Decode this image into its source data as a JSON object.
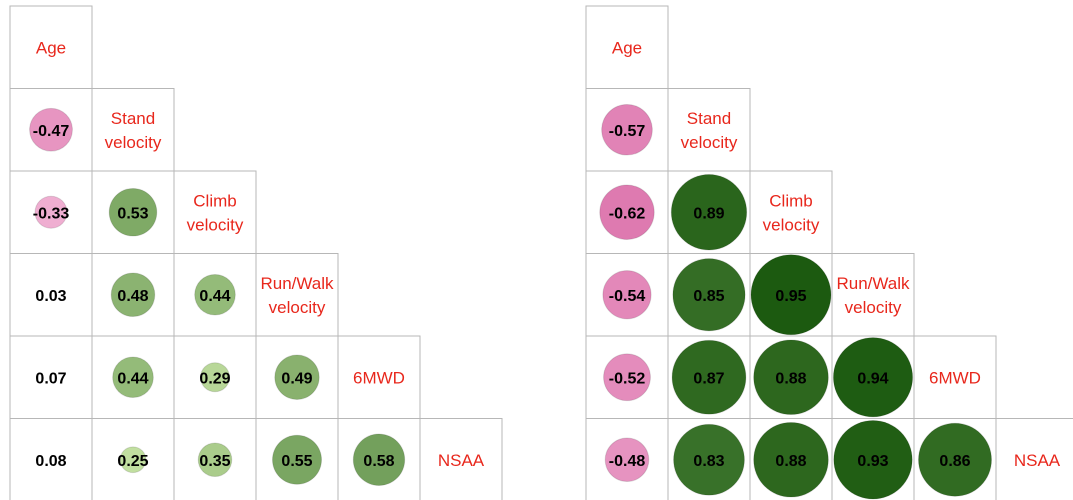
{
  "chart_data": [
    {
      "type": "heatmap",
      "variables": [
        [
          "Age"
        ],
        [
          "Stand",
          "velocity"
        ],
        [
          "Climb",
          "velocity"
        ],
        [
          "Run/Walk",
          "velocity"
        ],
        [
          "6MWD"
        ],
        [
          "NSAA"
        ]
      ],
      "values": [
        [],
        [
          -0.47
        ],
        [
          -0.33,
          0.53
        ],
        [
          0.03,
          0.48,
          0.44
        ],
        [
          0.07,
          0.44,
          0.29,
          0.49
        ],
        [
          0.08,
          0.25,
          0.35,
          0.55,
          0.58
        ]
      ],
      "value_labels": [
        [],
        [
          "-0.47"
        ],
        [
          "-0.33",
          "0.53"
        ],
        [
          "0.03",
          "0.48",
          "0.44"
        ],
        [
          "0.07",
          "0.44",
          "0.29",
          "0.49"
        ],
        [
          "0.08",
          "0.25",
          "0.35",
          "0.55",
          "0.58"
        ]
      ]
    },
    {
      "type": "heatmap",
      "variables": [
        [
          "Age"
        ],
        [
          "Stand",
          "velocity"
        ],
        [
          "Climb",
          "velocity"
        ],
        [
          "Run/Walk",
          "velocity"
        ],
        [
          "6MWD"
        ],
        [
          "NSAA"
        ]
      ],
      "values": [
        [],
        [
          -0.57
        ],
        [
          -0.62,
          0.89
        ],
        [
          -0.54,
          0.85,
          0.95
        ],
        [
          -0.52,
          0.87,
          0.88,
          0.94
        ],
        [
          -0.48,
          0.83,
          0.88,
          0.93,
          0.86
        ]
      ],
      "value_labels": [
        [],
        [
          "-0.57"
        ],
        [
          "-0.62",
          "0.89"
        ],
        [
          "-0.54",
          "0.85",
          "0.95"
        ],
        [
          "-0.52",
          "0.87",
          "0.88",
          "0.94"
        ],
        [
          "-0.48",
          "0.83",
          "0.88",
          "0.93",
          "0.86"
        ]
      ]
    }
  ],
  "colors": {
    "label": "#e8271c",
    "grid": "#b7b7b7",
    "negative_strong": "#cc3f8b",
    "negative_weak": "#f6c5e0",
    "positive_strong": "#1c5a10",
    "positive_weak": "#cde8aa"
  }
}
